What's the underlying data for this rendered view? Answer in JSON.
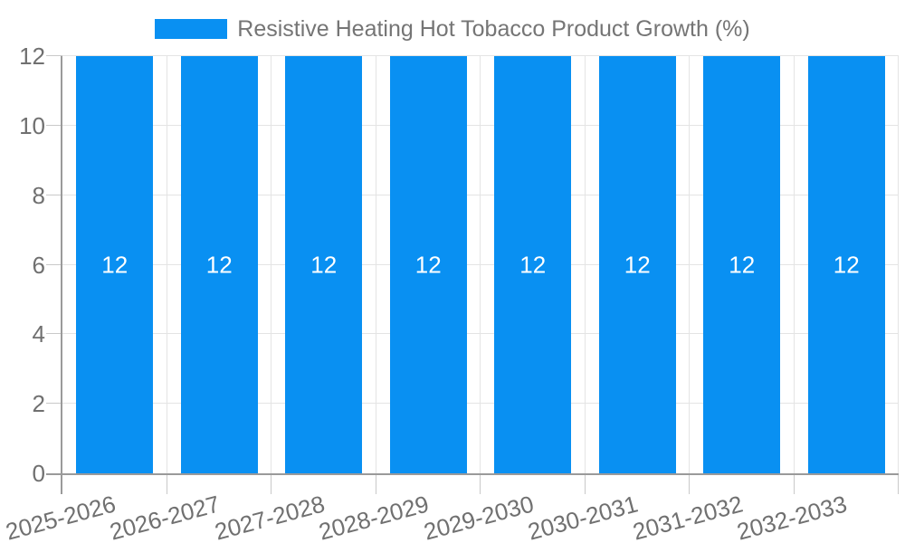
{
  "legend": {
    "label": "Resistive Heating Hot Tobacco Product Growth (%)"
  },
  "chart_data": {
    "type": "bar",
    "title": "",
    "xlabel": "",
    "ylabel": "",
    "categories": [
      "2025-2026",
      "2026-2027",
      "2027-2028",
      "2028-2029",
      "2029-2030",
      "2030-2031",
      "2031-2032",
      "2032-2033"
    ],
    "series": [
      {
        "name": "Resistive Heating Hot Tobacco Product Growth (%)",
        "values": [
          12,
          12,
          12,
          12,
          12,
          12,
          12,
          12
        ]
      }
    ],
    "bar_value_labels": [
      "12",
      "12",
      "12",
      "12",
      "12",
      "12",
      "12",
      "12"
    ],
    "ylim": [
      0,
      12
    ],
    "yticks": [
      0,
      2,
      4,
      6,
      8,
      10,
      12
    ],
    "grid": "on",
    "legend_position": "top-center",
    "x_label_rotation_deg": -15,
    "colors": {
      "bar": "#0990F2",
      "legend_text": "#757575",
      "axis_label_text": "#707070",
      "bar_value_text": "#ffffff",
      "axis_line": "#9a9a9a",
      "grid_line": "#e4e4e4",
      "tick_line": "#c9c9c9",
      "background": "#ffffff"
    }
  }
}
